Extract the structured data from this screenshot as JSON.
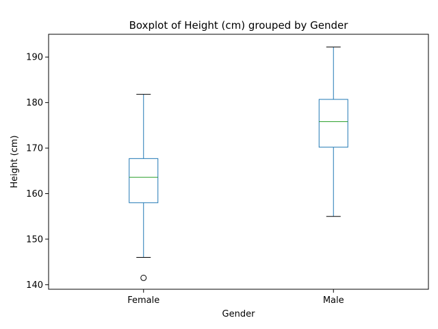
{
  "chart_data": {
    "type": "boxplot",
    "title": "Boxplot of Height (cm) grouped by Gender",
    "xlabel": "Gender",
    "ylabel": "Height (cm)",
    "ylim": [
      139,
      195
    ],
    "yticks": [
      140,
      150,
      160,
      170,
      180,
      190
    ],
    "grid": false,
    "categories": [
      "Female",
      "Male"
    ],
    "boxes": [
      {
        "category": "Female",
        "whisker_low": 146.0,
        "q1": 158.0,
        "median": 163.6,
        "q3": 167.7,
        "whisker_high": 181.8,
        "outliers": [
          141.5
        ]
      },
      {
        "category": "Male",
        "whisker_low": 155.0,
        "q1": 170.2,
        "median": 175.8,
        "q3": 180.7,
        "whisker_high": 192.2,
        "outliers": []
      }
    ],
    "colors": {
      "box": "#1f77b4",
      "median": "#2ca02c",
      "whisker_cap": "#000000",
      "outlier": "#000000"
    }
  }
}
